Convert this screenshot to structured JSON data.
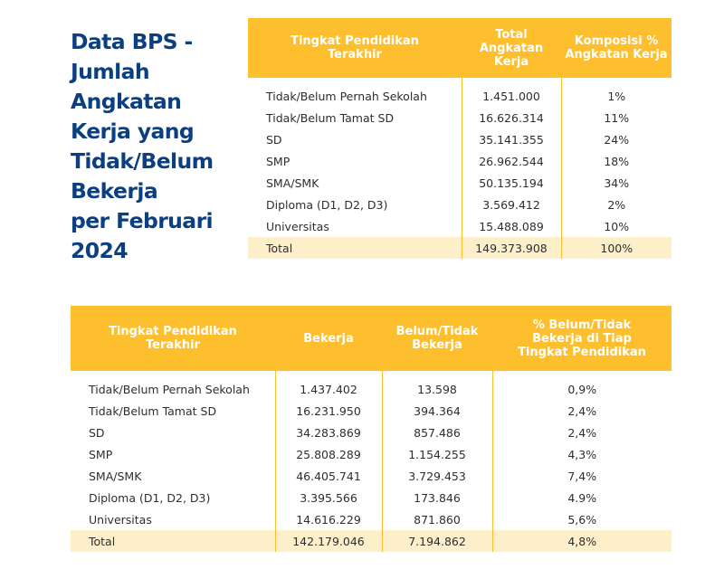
{
  "title_lines": [
    "Data BPS -",
    "Jumlah",
    "Angkatan",
    "Kerja yang",
    "Tidak/Belum",
    "Bekerja",
    "per Februari",
    "2024"
  ],
  "table1": {
    "headers": [
      "Tingkat Pendidikan Terakhir",
      "Total Angkatan Kerja",
      "Komposisi % Angkatan Kerja"
    ],
    "rows": [
      [
        "Tidak/Belum Pernah Sekolah",
        "1.451.000",
        "1%"
      ],
      [
        "Tidak/Belum Tamat SD",
        "16.626.314",
        "11%"
      ],
      [
        "SD",
        "35.141.355",
        "24%"
      ],
      [
        "SMP",
        "26.962.544",
        "18%"
      ],
      [
        "SMA/SMK",
        "50.135.194",
        "34%"
      ],
      [
        "Diploma (D1, D2, D3)",
        "3.569.412",
        "2%"
      ],
      [
        "Universitas",
        "15.488.089",
        "10%"
      ]
    ],
    "total": [
      "Total",
      "149.373.908",
      "100%"
    ]
  },
  "table2": {
    "headers": [
      "Tingkat Pendidikan Terakhir",
      "Bekerja",
      "Belum/Tidak Bekerja",
      "% Belum/Tidak Bekerja di Tiap Tingkat Pendidikan"
    ],
    "rows": [
      [
        "Tidak/Belum Pernah Sekolah",
        "1.437.402",
        "13.598",
        "0,9%"
      ],
      [
        "Tidak/Belum Tamat SD",
        "16.231.950",
        "394.364",
        "2,4%"
      ],
      [
        "SD",
        "34.283.869",
        "857.486",
        "2,4%"
      ],
      [
        "SMP",
        "25.808.289",
        "1.154.255",
        "4,3%"
      ],
      [
        "SMA/SMK",
        "46.405.741",
        "3.729.453",
        "7,4%"
      ],
      [
        "Diploma (D1, D2, D3)",
        "3.395.566",
        "173.846",
        "4.9%"
      ],
      [
        "Universitas",
        "14.616.229",
        "871.860",
        "5,6%"
      ]
    ],
    "total": [
      "Total",
      "142.179.046",
      "7.194.862",
      "4,8%"
    ]
  },
  "colors": {
    "title": "#0c3f82",
    "header_bg": "#fdbf2d",
    "total_bg": "#fdefc9"
  }
}
